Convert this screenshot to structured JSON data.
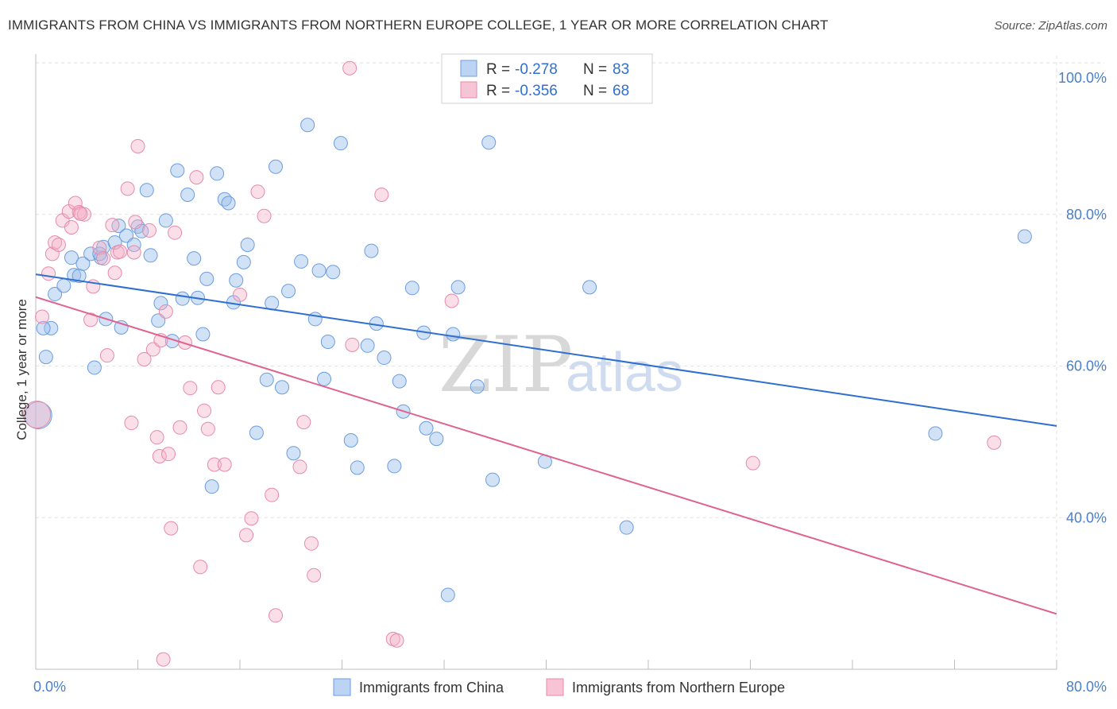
{
  "header": {
    "title": "IMMIGRANTS FROM CHINA VS IMMIGRANTS FROM NORTHERN EUROPE COLLEGE, 1 YEAR OR MORE CORRELATION CHART",
    "source": "Source: ZipAtlas.com"
  },
  "watermark": {
    "zip": "ZIP",
    "atlas": "atlas"
  },
  "legend_top": {
    "r_label": "R =",
    "n_label": "N =",
    "rows": [
      {
        "r": "-0.278",
        "n": "83"
      },
      {
        "r": "-0.356",
        "n": "68"
      }
    ]
  },
  "chart_data": {
    "type": "scatter",
    "title": "IMMIGRANTS FROM CHINA VS IMMIGRANTS FROM NORTHERN EUROPE COLLEGE, 1 YEAR OR MORE CORRELATION CHART",
    "xlabel": "",
    "ylabel": "College, 1 year or more",
    "xlim": [
      0,
      80
    ],
    "ylim": [
      20,
      102
    ],
    "x_tick_labels": [
      "0.0%",
      "80.0%"
    ],
    "y_ticks": [
      40,
      60,
      80,
      100
    ],
    "y_tick_labels": [
      "40.0%",
      "60.0%",
      "80.0%",
      "100.0%"
    ],
    "grid": true,
    "legend_position": "top-center",
    "colors": {
      "china": "#6b9de0",
      "europe": "#e88aa8",
      "china_line": "#2f6fd0",
      "europe_line": "#e0628e"
    },
    "series": [
      {
        "name": "Immigrants from China",
        "r": -0.278,
        "n": 83,
        "trend": {
          "x0": 0,
          "y0": 72.1,
          "x1": 80,
          "y1": 52.1
        },
        "points": [
          [
            0.2,
            53.5
          ],
          [
            0.8,
            61.2
          ],
          [
            1.2,
            65.0
          ],
          [
            1.5,
            69.5
          ],
          [
            2.2,
            70.6
          ],
          [
            2.8,
            74.3
          ],
          [
            3.0,
            72.0
          ],
          [
            3.4,
            71.9
          ],
          [
            3.7,
            73.5
          ],
          [
            4.3,
            74.8
          ],
          [
            4.6,
            59.8
          ],
          [
            5.1,
            74.3
          ],
          [
            5.3,
            75.7
          ],
          [
            5.5,
            66.2
          ],
          [
            6.2,
            76.3
          ],
          [
            6.5,
            78.5
          ],
          [
            6.7,
            65.1
          ],
          [
            7.1,
            77.2
          ],
          [
            7.7,
            76.0
          ],
          [
            8.0,
            78.4
          ],
          [
            8.3,
            77.8
          ],
          [
            8.7,
            83.2
          ],
          [
            9.0,
            74.6
          ],
          [
            9.6,
            66.0
          ],
          [
            9.8,
            68.3
          ],
          [
            10.2,
            79.2
          ],
          [
            10.7,
            63.3
          ],
          [
            11.1,
            85.8
          ],
          [
            11.5,
            68.9
          ],
          [
            11.9,
            82.6
          ],
          [
            12.4,
            74.2
          ],
          [
            12.7,
            69.0
          ],
          [
            13.1,
            64.2
          ],
          [
            13.4,
            71.5
          ],
          [
            14.2,
            85.4
          ],
          [
            14.8,
            82.0
          ],
          [
            15.1,
            81.5
          ],
          [
            15.5,
            68.4
          ],
          [
            15.7,
            71.3
          ],
          [
            16.3,
            73.7
          ],
          [
            16.6,
            76.0
          ],
          [
            17.3,
            51.2
          ],
          [
            18.1,
            58.2
          ],
          [
            18.5,
            68.3
          ],
          [
            18.8,
            86.3
          ],
          [
            19.3,
            57.2
          ],
          [
            19.8,
            69.9
          ],
          [
            20.2,
            48.5
          ],
          [
            20.8,
            73.8
          ],
          [
            21.3,
            91.8
          ],
          [
            21.9,
            66.2
          ],
          [
            22.2,
            72.6
          ],
          [
            22.6,
            58.3
          ],
          [
            22.9,
            63.2
          ],
          [
            23.3,
            72.4
          ],
          [
            23.9,
            89.4
          ],
          [
            24.7,
            50.2
          ],
          [
            25.2,
            46.6
          ],
          [
            26.0,
            62.7
          ],
          [
            26.3,
            75.2
          ],
          [
            26.7,
            65.6
          ],
          [
            27.3,
            61.1
          ],
          [
            28.1,
            46.8
          ],
          [
            28.5,
            58.0
          ],
          [
            28.8,
            54.0
          ],
          [
            29.5,
            70.3
          ],
          [
            30.4,
            64.4
          ],
          [
            30.6,
            51.8
          ],
          [
            31.4,
            50.4
          ],
          [
            32.3,
            29.8
          ],
          [
            32.7,
            64.2
          ],
          [
            33.1,
            70.4
          ],
          [
            34.6,
            57.3
          ],
          [
            35.5,
            89.5
          ],
          [
            35.8,
            45.0
          ],
          [
            39.9,
            47.4
          ],
          [
            43.4,
            70.4
          ],
          [
            46.3,
            38.7
          ],
          [
            70.5,
            51.1
          ],
          [
            77.5,
            77.1
          ],
          [
            13.8,
            44.1
          ],
          [
            0.6,
            65.0
          ],
          [
            5.0,
            74.8
          ]
        ]
      },
      {
        "name": "Immigrants from Northern Europe",
        "r": -0.356,
        "n": 68,
        "trend": {
          "x0": 0,
          "y0": 69.1,
          "x1": 80,
          "y1": 27.3
        },
        "points": [
          [
            0.1,
            53.6
          ],
          [
            0.5,
            66.5
          ],
          [
            1.0,
            72.2
          ],
          [
            1.3,
            74.8
          ],
          [
            1.5,
            76.3
          ],
          [
            1.8,
            76.0
          ],
          [
            2.1,
            79.2
          ],
          [
            2.6,
            80.4
          ],
          [
            2.8,
            78.3
          ],
          [
            3.1,
            81.5
          ],
          [
            3.4,
            80.3
          ],
          [
            3.8,
            80.0
          ],
          [
            4.3,
            66.1
          ],
          [
            4.5,
            70.5
          ],
          [
            5.0,
            75.6
          ],
          [
            5.3,
            74.2
          ],
          [
            5.6,
            61.4
          ],
          [
            6.0,
            78.6
          ],
          [
            6.2,
            72.3
          ],
          [
            6.4,
            75.0
          ],
          [
            6.6,
            75.1
          ],
          [
            7.2,
            83.4
          ],
          [
            7.5,
            52.5
          ],
          [
            7.8,
            79.0
          ],
          [
            8.0,
            89.0
          ],
          [
            8.5,
            60.9
          ],
          [
            8.9,
            77.9
          ],
          [
            9.2,
            62.2
          ],
          [
            9.5,
            50.6
          ],
          [
            9.7,
            48.1
          ],
          [
            10.0,
            21.3
          ],
          [
            10.2,
            67.2
          ],
          [
            10.4,
            48.4
          ],
          [
            10.6,
            38.6
          ],
          [
            10.9,
            77.6
          ],
          [
            11.3,
            51.9
          ],
          [
            11.7,
            63.1
          ],
          [
            12.1,
            57.1
          ],
          [
            12.6,
            84.9
          ],
          [
            12.9,
            33.5
          ],
          [
            13.2,
            54.1
          ],
          [
            13.5,
            51.7
          ],
          [
            14.0,
            47.0
          ],
          [
            14.3,
            57.2
          ],
          [
            14.8,
            47.0
          ],
          [
            16.0,
            69.4
          ],
          [
            16.5,
            37.7
          ],
          [
            16.9,
            39.9
          ],
          [
            17.4,
            83.0
          ],
          [
            17.9,
            79.8
          ],
          [
            18.5,
            43.0
          ],
          [
            18.8,
            27.1
          ],
          [
            20.7,
            46.7
          ],
          [
            21.0,
            52.6
          ],
          [
            21.6,
            36.6
          ],
          [
            21.8,
            32.4
          ],
          [
            24.6,
            99.3
          ],
          [
            24.8,
            62.8
          ],
          [
            27.1,
            82.6
          ],
          [
            28.0,
            24.0
          ],
          [
            28.3,
            23.8
          ],
          [
            32.4,
            97.2
          ],
          [
            32.6,
            68.6
          ],
          [
            56.2,
            47.2
          ],
          [
            75.1,
            49.9
          ],
          [
            3.5,
            80.1
          ],
          [
            7.7,
            75.0
          ],
          [
            9.8,
            63.4
          ]
        ]
      }
    ]
  },
  "bottom_legend": [
    {
      "label": "Immigrants from China"
    },
    {
      "label": "Immigrants from Northern Europe"
    }
  ]
}
